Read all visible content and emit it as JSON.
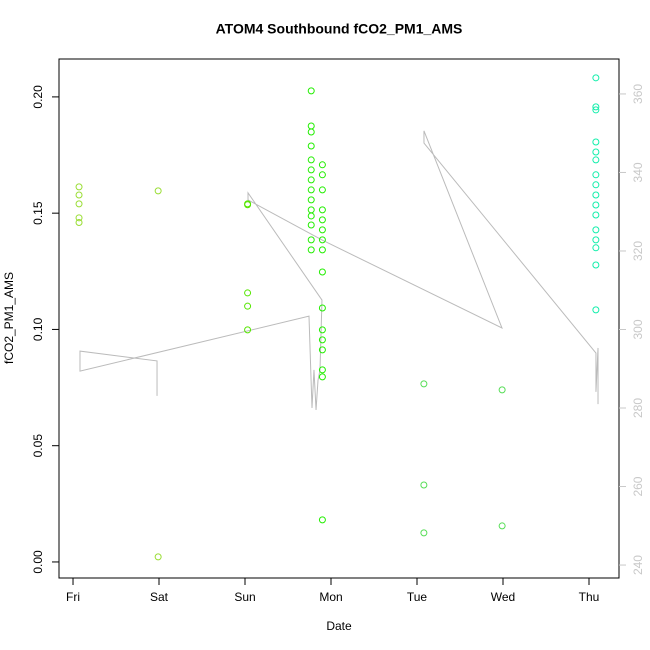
{
  "chart_data": {
    "type": "scatter",
    "title": "ATOM4 Southbound fCO2_PM1_AMS",
    "x_label": "Date",
    "y_label": "fCO2_PM1_AMS",
    "xlim": [
      -0.163,
      6.349
    ],
    "xticks": [
      {
        "value": 0,
        "label": "Fri"
      },
      {
        "value": 1,
        "label": "Sat"
      },
      {
        "value": 2,
        "label": "Sun"
      },
      {
        "value": 3,
        "label": "Mon"
      },
      {
        "value": 4,
        "label": "Tue"
      },
      {
        "value": 5,
        "label": "Wed"
      },
      {
        "value": 6,
        "label": "Thu"
      }
    ],
    "ylim": [
      -0.0069,
      0.2163
    ],
    "yticks": [
      {
        "value": 0,
        "label": "0.00"
      },
      0.05,
      {
        "value": 0.1,
        "label": "0.10"
      },
      0.15,
      {
        "value": 0.2,
        "label": "0.20"
      }
    ],
    "y2lim": [
      236.7,
      368.9
    ],
    "y2ticks": [
      240,
      260,
      280,
      300,
      320,
      340,
      360
    ],
    "y2_color": "#c8c8c8",
    "series": [
      {
        "color": "#bbbbbb",
        "axis": "y2",
        "style": "line",
        "x": [
          0.977,
          0.977,
          0.081,
          0.081,
          2.744,
          2.779,
          2.802,
          2.826,
          2.849,
          2.872,
          2.895,
          2.035,
          2.035,
          2.895,
          4.988,
          4.081,
          4.081,
          6.081,
          6.081,
          6.105,
          6.105
        ],
        "values": [
          283.1,
          292.0,
          294.5,
          289.4,
          303.4,
          280.0,
          289.7,
          279.5,
          287.1,
          289.7,
          307.5,
          334.8,
          333.0,
          322.8,
          300.4,
          350.6,
          347.5,
          294.0,
          284.1,
          295.3,
          281.0
        ]
      },
      {
        "color": "#99dd33",
        "x": [
          0.07,
          0.07,
          0.07,
          0.07,
          0.07,
          0.99,
          0.99
        ],
        "values": [
          0.1613,
          0.1578,
          0.154,
          0.148,
          0.146,
          0.1596,
          0.0022
        ]
      },
      {
        "color": "#55e600",
        "x": [
          2.03,
          2.03,
          2.03,
          2.03,
          2.03
        ],
        "values": [
          0.154,
          0.1536,
          0.1157,
          0.11,
          0.0998
        ]
      },
      {
        "color": "#22ee00",
        "x": [
          2.77,
          2.77,
          2.77,
          2.77,
          2.77,
          2.77,
          2.77,
          2.77,
          2.77,
          2.77,
          2.77,
          2.77,
          2.77,
          2.77,
          2.9,
          2.9,
          2.9,
          2.9,
          2.9,
          2.9,
          2.9,
          2.9,
          2.9,
          2.9,
          2.9,
          2.9,
          2.9,
          2.9,
          2.9,
          2.9
        ],
        "values": [
          0.2026,
          0.1875,
          0.1849,
          0.1789,
          0.1729,
          0.1686,
          0.1643,
          0.16,
          0.1557,
          0.1514,
          0.1488,
          0.1449,
          0.1385,
          0.1342,
          0.1708,
          0.1665,
          0.16,
          0.1514,
          0.1471,
          0.1428,
          0.1385,
          0.1342,
          0.1247,
          0.1092,
          0.0998,
          0.0955,
          0.0912,
          0.0826,
          0.0796,
          0.0181
        ]
      },
      {
        "color": "#55dd55",
        "x": [
          4.08,
          4.08,
          4.08,
          4.99,
          4.99
        ],
        "values": [
          0.0766,
          0.0331,
          0.0125,
          0.074,
          0.0155
        ]
      },
      {
        "color": "#11eeaa",
        "x": [
          6.08,
          6.08,
          6.08,
          6.08,
          6.08,
          6.08,
          6.08,
          6.08,
          6.08,
          6.08,
          6.08,
          6.08,
          6.08,
          6.08,
          6.08,
          6.08
        ],
        "values": [
          0.2082,
          0.1957,
          0.1944,
          0.1806,
          0.1763,
          0.1729,
          0.1665,
          0.1622,
          0.1578,
          0.1535,
          0.1492,
          0.1428,
          0.1385,
          0.1351,
          0.1277,
          0.1084
        ]
      }
    ]
  }
}
